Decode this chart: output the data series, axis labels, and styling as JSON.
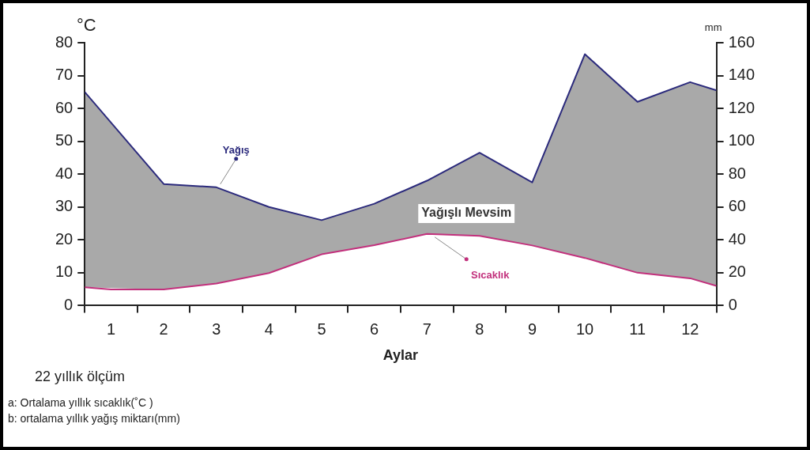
{
  "chart_data": {
    "type": "line",
    "xlabel": "Aylar",
    "ylabel": "°C",
    "y2label": "mm",
    "xlim": [
      0,
      12
    ],
    "xticks": [
      {
        "value": 0,
        "label": null
      },
      {
        "value": 0.5,
        "label": "1"
      },
      {
        "value": 1,
        "label": null
      },
      {
        "value": 1.5,
        "label": "2"
      },
      {
        "value": 2,
        "label": null
      },
      {
        "value": 2.5,
        "label": "3"
      },
      {
        "value": 3,
        "label": null
      },
      {
        "value": 3.5,
        "label": "4"
      },
      {
        "value": 4,
        "label": null
      },
      {
        "value": 4.5,
        "label": "5"
      },
      {
        "value": 5,
        "label": null
      },
      {
        "value": 5.5,
        "label": "6"
      },
      {
        "value": 6,
        "label": null
      },
      {
        "value": 6.5,
        "label": "7"
      },
      {
        "value": 7,
        "label": null
      },
      {
        "value": 7.5,
        "label": "8"
      },
      {
        "value": 8,
        "label": null
      },
      {
        "value": 8.5,
        "label": "9"
      },
      {
        "value": 9,
        "label": null
      },
      {
        "value": 9.5,
        "label": "10"
      },
      {
        "value": 10,
        "label": null
      },
      {
        "value": 10.5,
        "label": "11"
      },
      {
        "value": 11,
        "label": null
      },
      {
        "value": 11.5,
        "label": "12"
      },
      {
        "value": 12,
        "label": null
      }
    ],
    "ylim": [
      0,
      80
    ],
    "yticks": [
      0,
      10,
      20,
      30,
      40,
      50,
      60,
      70,
      80
    ],
    "y2lim": [
      0,
      160
    ],
    "y2ticks": [
      0,
      20,
      40,
      60,
      80,
      100,
      120,
      140,
      160
    ],
    "series": [
      {
        "name": "Yağış",
        "color": "#2b2a7c",
        "axis": "y2",
        "x": [
          0,
          1.5,
          2.5,
          3.5,
          4.5,
          5.5,
          6.5,
          7.5,
          8.5,
          9.5,
          10.5,
          11.5,
          12
        ],
        "values": [
          130,
          74,
          72,
          60,
          52,
          62,
          76,
          93,
          75,
          153,
          124,
          136,
          131
        ],
        "lower": [
          11.2,
          9.8,
          13.4,
          19.8,
          31.2,
          36.8,
          43.6,
          42.4,
          36.6,
          29,
          20,
          16.6,
          12
        ],
        "upper": [
          130,
          74,
          72,
          60,
          52,
          62,
          76,
          93,
          75,
          153,
          124,
          136,
          131
        ]
      },
      {
        "name": "Sıcaklık",
        "color": "#c2307c",
        "x": [
          0,
          0.5,
          1.5,
          2.5,
          3.5,
          4.5,
          5.5,
          6.5,
          7.5,
          8.5,
          9.5,
          10.5,
          11.5,
          12
        ],
        "values": [
          5.6,
          4.9,
          4.9,
          6.7,
          9.9,
          15.6,
          18.4,
          21.8,
          21.2,
          18.3,
          14.5,
          10,
          8.3,
          6
        ]
      }
    ],
    "annotations": [
      "Yağışlı Mevsim",
      "22 yıllık ölçüm",
      "a: Ortalama yıllık sıcaklık(˚C )",
      "b: ortalama yıllık yağış miktarı(mm)"
    ],
    "grid": false,
    "legend": false,
    "marker": "none",
    "line_style": "solid"
  }
}
